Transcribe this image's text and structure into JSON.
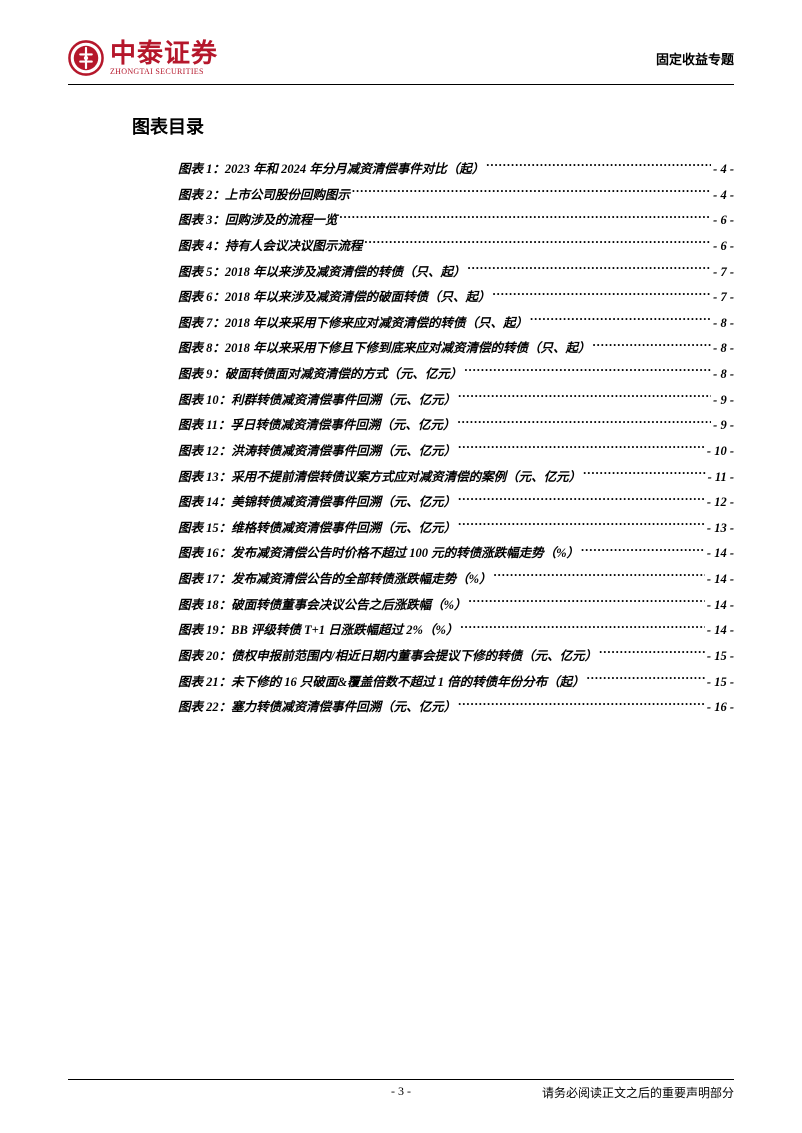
{
  "header": {
    "logo_cn": "中泰证券",
    "logo_en": "ZHONGTAI SECURITIES",
    "category": "固定收益专题",
    "logo_color": "#b5172b"
  },
  "toc": {
    "title": "图表目录",
    "entries": [
      {
        "label": "图表 1：2023 年和 2024 年分月减资清偿事件对比（起）",
        "page": "- 4 -"
      },
      {
        "label": "图表 2：上市公司股份回购图示",
        "page": "- 4 -"
      },
      {
        "label": "图表 3：回购涉及的流程一览",
        "page": "- 6 -"
      },
      {
        "label": "图表 4：持有人会议决议图示流程",
        "page": "- 6 -"
      },
      {
        "label": "图表 5：2018 年以来涉及减资清偿的转债（只、起）",
        "page": "- 7 -"
      },
      {
        "label": "图表 6：2018 年以来涉及减资清偿的破面转债（只、起）",
        "page": "- 7 -"
      },
      {
        "label": "图表 7：2018 年以来采用下修来应对减资清偿的转债（只、起）",
        "page": "- 8 -"
      },
      {
        "label": "图表 8：2018 年以来采用下修且下修到底来应对减资清偿的转债（只、起）",
        "page": "- 8 -"
      },
      {
        "label": "图表 9：破面转债面对减资清偿的方式（元、亿元）",
        "page": "- 8 -"
      },
      {
        "label": "图表 10：利群转债减资清偿事件回溯（元、亿元）",
        "page": "- 9 -"
      },
      {
        "label": "图表 11：孚日转债减资清偿事件回溯（元、亿元）",
        "page": "- 9 -"
      },
      {
        "label": "图表 12：洪涛转债减资清偿事件回溯（元、亿元）",
        "page": "- 10 -"
      },
      {
        "label": "图表 13：采用不提前清偿转债议案方式应对减资清偿的案例（元、亿元）",
        "page": "- 11 -"
      },
      {
        "label": "图表 14：美锦转债减资清偿事件回溯（元、亿元）",
        "page": "- 12 -"
      },
      {
        "label": "图表 15：维格转债减资清偿事件回溯（元、亿元）",
        "page": "- 13 -"
      },
      {
        "label": "图表 16：发布减资清偿公告时价格不超过 100 元的转债涨跌幅走势（%）",
        "page": "- 14 -"
      },
      {
        "label": "图表 17：发布减资清偿公告的全部转债涨跌幅走势（%）",
        "page": "- 14 -"
      },
      {
        "label": "图表 18：破面转债董事会决议公告之后涨跌幅（%）",
        "page": "- 14 -"
      },
      {
        "label": "图表 19：BB 评级转债 T+1 日涨跌幅超过 2%（%）",
        "page": "- 14 -"
      },
      {
        "label": "图表 20：债权申报前范围内/相近日期内董事会提议下修的转债（元、亿元）",
        "page": "- 15 -"
      },
      {
        "label": "图表 21：未下修的 16 只破面&覆盖倍数不超过 1 倍的转债年份分布（起）",
        "page": "- 15 -"
      },
      {
        "label": "图表 22：塞力转债减资清偿事件回溯（元、亿元）",
        "page": "- 16 -"
      }
    ]
  },
  "footer": {
    "page_number": "- 3 -",
    "note": "请务必阅读正文之后的重要声明部分"
  }
}
